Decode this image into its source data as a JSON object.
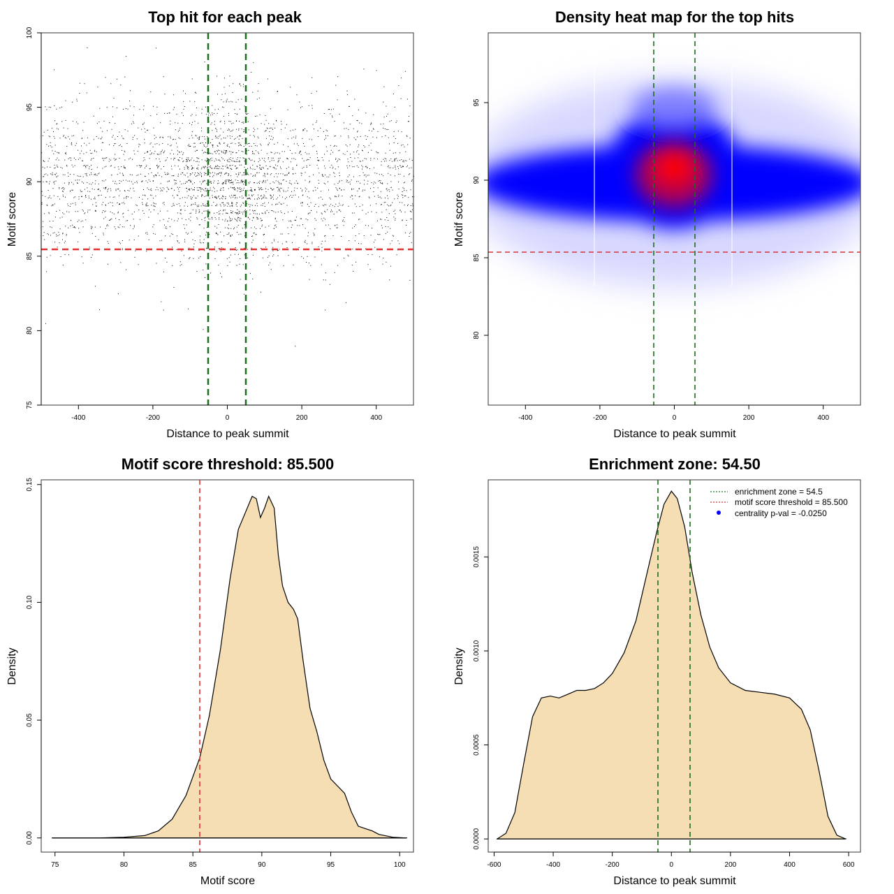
{
  "colors": {
    "frame": "#333333",
    "points": "#000000",
    "enrichment_line": "#1b6e1b",
    "threshold_line": "#e03030",
    "density_fill": "#f5deb3",
    "legend_dot": "#0000ff"
  },
  "chart_data": [
    {
      "type": "scatter",
      "title": "Top hit for each peak",
      "xlabel": "Distance to peak summit",
      "ylabel": "Motif score",
      "xlim": [
        -500,
        500
      ],
      "ylim": [
        75,
        100
      ],
      "xticks": [
        -400,
        -200,
        0,
        200,
        400
      ],
      "yticks": [
        75,
        80,
        85,
        90,
        95,
        100
      ],
      "n_points_approx": 10000,
      "point_distribution": {
        "x_range": [
          -500,
          500
        ],
        "y_center": 90,
        "y_sd": 2.7,
        "central_density_peak_x": 0
      },
      "vlines": [
        -54.5,
        54.5
      ],
      "hline": 85.5
    },
    {
      "type": "heatmap",
      "title": "Density heat map for the top hits",
      "xlabel": "Distance to peak summit",
      "ylabel": "Motif score",
      "xlim": [
        -500,
        500
      ],
      "ylim": [
        75.5,
        99.5
      ],
      "xticks": [
        -400,
        -200,
        0,
        200,
        400
      ],
      "yticks": [
        80,
        85,
        90,
        95
      ],
      "hotspot": {
        "x": 0,
        "y": 90.5
      },
      "vlines": [
        -54.5,
        54.5
      ],
      "hline": 85.5
    },
    {
      "type": "area",
      "title": "Motif score threshold: 85.500",
      "xlabel": "Motif score",
      "ylabel": "Density",
      "xlim": [
        74,
        101
      ],
      "ylim": [
        -0.006,
        0.152
      ],
      "xticks": [
        75,
        80,
        85,
        90,
        95,
        100
      ],
      "yticks": [
        0.0,
        0.05,
        0.1,
        0.15
      ],
      "ytick_labels": [
        "0.00",
        "0.05",
        "0.10",
        "0.15"
      ],
      "x": [
        74.8,
        78,
        80,
        81.5,
        82.5,
        83.5,
        84.5,
        85.5,
        86.2,
        87,
        87.7,
        88.3,
        88.8,
        89.3,
        89.6,
        89.9,
        90.2,
        90.5,
        90.9,
        91.2,
        91.5,
        91.9,
        92.3,
        92.6,
        93,
        93.5,
        94,
        94.5,
        95,
        95.5,
        96,
        96.5,
        97,
        97.5,
        98,
        98.5,
        99.5,
        100.5
      ],
      "y": [
        0.0,
        0.0,
        0.0003,
        0.001,
        0.003,
        0.008,
        0.018,
        0.034,
        0.052,
        0.08,
        0.11,
        0.131,
        0.138,
        0.145,
        0.144,
        0.136,
        0.14,
        0.145,
        0.14,
        0.12,
        0.107,
        0.1,
        0.097,
        0.093,
        0.075,
        0.055,
        0.045,
        0.033,
        0.025,
        0.022,
        0.019,
        0.011,
        0.005,
        0.004,
        0.003,
        0.0015,
        0.0003,
        0.0
      ],
      "vline": 85.5
    },
    {
      "type": "area",
      "title": "Enrichment zone: 54.50",
      "xlabel": "Distance to peak summit",
      "ylabel": "Density",
      "xlim": [
        -620,
        640
      ],
      "ylim": [
        -7e-05,
        0.00191
      ],
      "xticks": [
        -600,
        -400,
        -200,
        0,
        200,
        400,
        600
      ],
      "yticks": [
        0.0,
        0.0005,
        0.001,
        0.0015
      ],
      "ytick_labels": [
        "0.0000",
        "0.0005",
        "0.0010",
        "0.0015"
      ],
      "x": [
        -590,
        -560,
        -530,
        -500,
        -470,
        -440,
        -410,
        -380,
        -350,
        -320,
        -290,
        -260,
        -230,
        -200,
        -160,
        -120,
        -80,
        -50,
        -25,
        0,
        20,
        45,
        70,
        100,
        130,
        160,
        200,
        250,
        300,
        350,
        400,
        440,
        470,
        500,
        530,
        560,
        590
      ],
      "y": [
        0.0,
        3e-05,
        0.00014,
        0.0004,
        0.00065,
        0.00075,
        0.00076,
        0.00075,
        0.00077,
        0.00079,
        0.00079,
        0.0008,
        0.00083,
        0.00088,
        0.00099,
        0.00116,
        0.00143,
        0.00163,
        0.00178,
        0.00185,
        0.00181,
        0.00166,
        0.00142,
        0.00119,
        0.00102,
        0.00091,
        0.00083,
        0.00079,
        0.00078,
        0.00077,
        0.00075,
        0.00069,
        0.00058,
        0.00036,
        0.00012,
        2e-05,
        0.0
      ],
      "vlines": [
        -54.5,
        54.5
      ],
      "legend": {
        "position": "top-right",
        "entries": [
          {
            "label": "enrichment zone = 54.5",
            "kind": "dotted-line",
            "color": "#1b6e1b"
          },
          {
            "label": "motif score threshold = 85.500",
            "kind": "dotted-line",
            "color": "#e03030"
          },
          {
            "label": "centrality p-val = -0.0250",
            "kind": "dot",
            "color": "#0000ff"
          }
        ]
      }
    }
  ]
}
